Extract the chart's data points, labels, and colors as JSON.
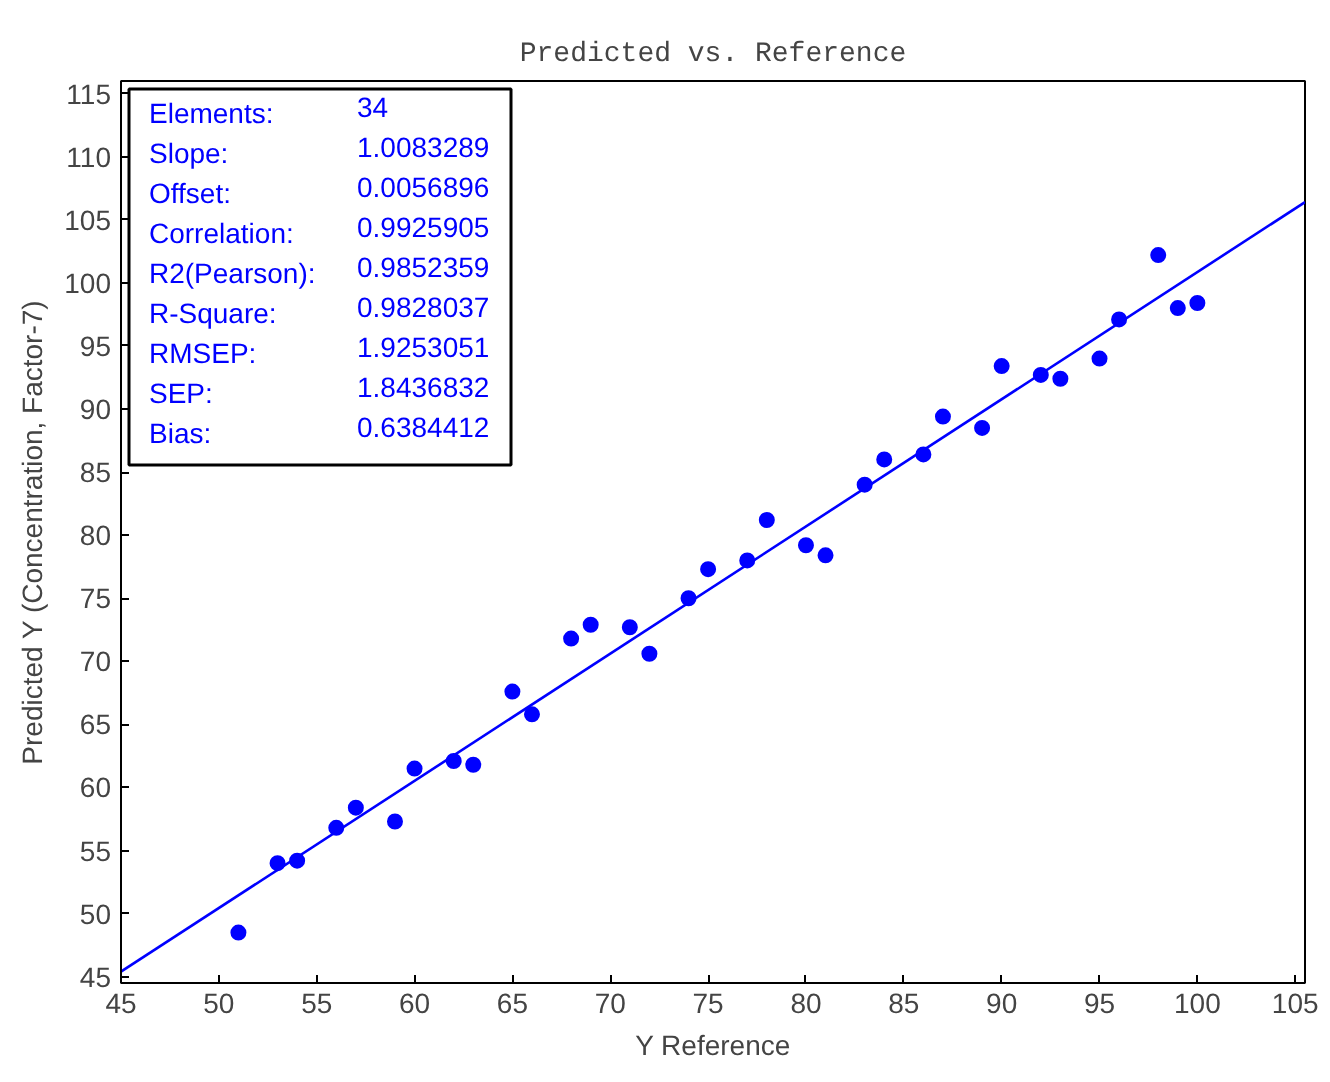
{
  "chart_data": {
    "type": "scatter",
    "title": "Predicted vs. Reference",
    "xlabel": "Y Reference",
    "ylabel": "Predicted Y (Concentration, Factor-7)",
    "xlim": [
      45,
      105.5
    ],
    "ylim": [
      44.5,
      116
    ],
    "xticks": [
      45,
      50,
      55,
      60,
      65,
      70,
      75,
      80,
      85,
      90,
      95,
      100,
      105
    ],
    "yticks": [
      45,
      50,
      55,
      60,
      65,
      70,
      75,
      80,
      85,
      90,
      95,
      100,
      105,
      110,
      115
    ],
    "grid": false,
    "marker": "circle",
    "x": [
      51,
      53,
      54,
      56,
      57,
      59,
      60,
      62,
      63,
      65,
      66,
      68,
      69,
      71,
      72,
      74,
      75,
      77,
      78,
      80,
      81,
      83,
      84,
      86,
      87,
      89,
      90,
      92,
      93,
      95,
      96,
      98,
      99,
      100
    ],
    "series": [
      {
        "color": "#0000ff",
        "values": [
          48.5,
          54,
          54.2,
          56.8,
          58.4,
          57.3,
          61.5,
          62.1,
          61.8,
          67.6,
          65.8,
          71.8,
          72.9,
          72.7,
          70.6,
          75,
          77.3,
          78,
          81.2,
          79.2,
          78.4,
          84,
          86,
          86.4,
          89.4,
          88.5,
          93.4,
          92.7,
          92.4,
          94,
          97.1,
          102.2,
          98,
          98.4
        ]
      },
      {
        "type": "line",
        "marker": "none",
        "color": "#0000ff",
        "x": [
          45,
          105.5
        ],
        "values": [
          45.4,
          106.4
        ]
      }
    ],
    "annotations": [
      "Elements: 34",
      "Slope: 1.0083289",
      "Offset: 0.0056896",
      "Correlation: 0.9925905",
      "R2(Pearson): 0.9852359",
      "R-Square: 0.9828037",
      "RMSEP: 1.9253051",
      "SEP: 1.8436832",
      "Bias: 0.6384412"
    ]
  }
}
